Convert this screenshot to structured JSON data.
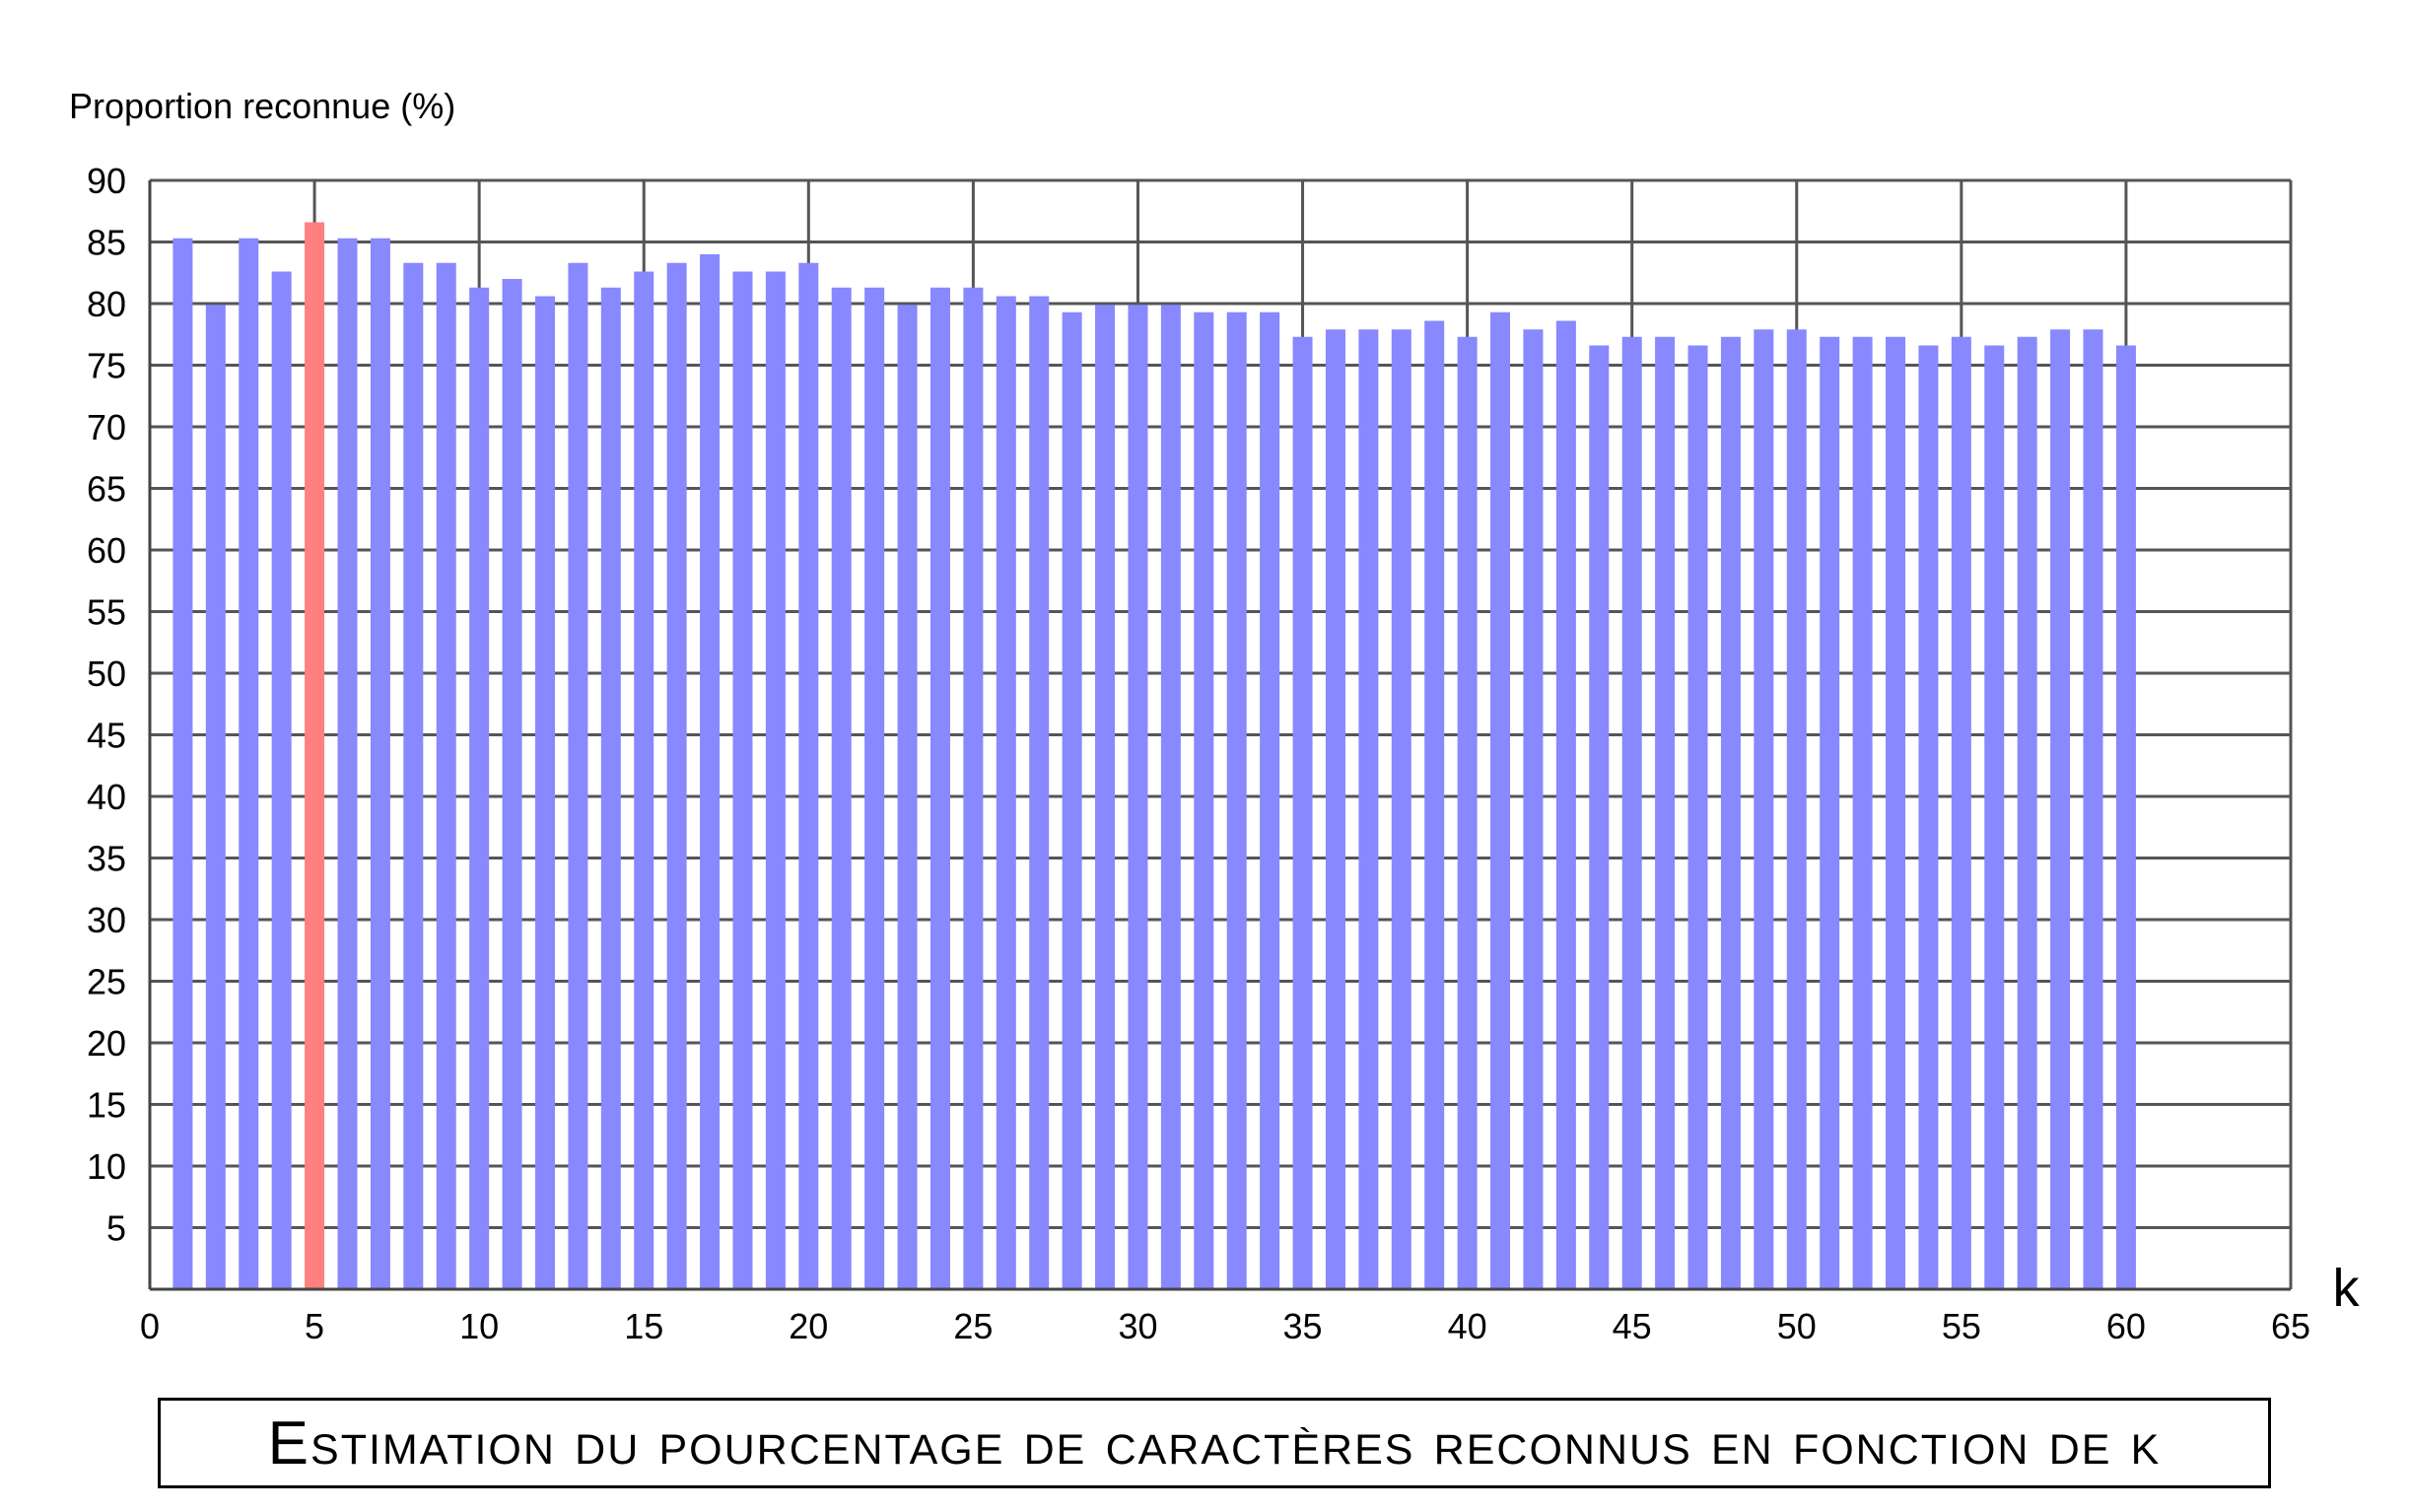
{
  "chart_data": {
    "type": "bar",
    "ylabel": "Proportion reconnue (%)",
    "xlabel": "k",
    "caption": "Estimation du pourcentage de caractères reconnus en fonction de k",
    "xlim": [
      0,
      65
    ],
    "ylim": [
      0,
      90
    ],
    "x_ticks": [
      0,
      5,
      10,
      15,
      20,
      25,
      30,
      35,
      40,
      45,
      50,
      55,
      60,
      65
    ],
    "y_ticks": [
      5,
      10,
      15,
      20,
      25,
      30,
      35,
      40,
      45,
      50,
      55,
      60,
      65,
      70,
      75,
      80,
      85,
      90
    ],
    "grid": true,
    "colors": {
      "default": "#8888ff",
      "highlight": "#ff8080"
    },
    "highlight_x": 5,
    "x": [
      1,
      2,
      3,
      4,
      5,
      6,
      7,
      8,
      9,
      10,
      11,
      12,
      13,
      14,
      15,
      16,
      17,
      18,
      19,
      20,
      21,
      22,
      23,
      24,
      25,
      26,
      27,
      28,
      29,
      30,
      31,
      32,
      33,
      34,
      35,
      36,
      37,
      38,
      39,
      40,
      41,
      42,
      43,
      44,
      45,
      46,
      47,
      48,
      49,
      50,
      51,
      52,
      53,
      54,
      55,
      56,
      57,
      58,
      59,
      60
    ],
    "values": [
      85.3,
      79.9,
      85.3,
      82.6,
      86.6,
      85.3,
      85.3,
      83.3,
      83.3,
      81.3,
      82.0,
      80.6,
      83.3,
      81.3,
      82.6,
      83.3,
      84.0,
      82.6,
      82.6,
      83.3,
      81.3,
      81.3,
      79.9,
      81.3,
      81.3,
      80.6,
      80.6,
      79.3,
      79.9,
      79.9,
      79.9,
      79.3,
      79.3,
      79.3,
      77.3,
      77.9,
      77.9,
      77.9,
      78.6,
      77.3,
      79.3,
      77.9,
      78.6,
      76.6,
      77.3,
      77.3,
      76.6,
      77.3,
      77.9,
      77.9,
      77.3,
      77.3,
      77.3,
      76.6,
      77.3,
      76.6,
      77.3,
      77.9,
      77.9,
      76.6
    ]
  }
}
